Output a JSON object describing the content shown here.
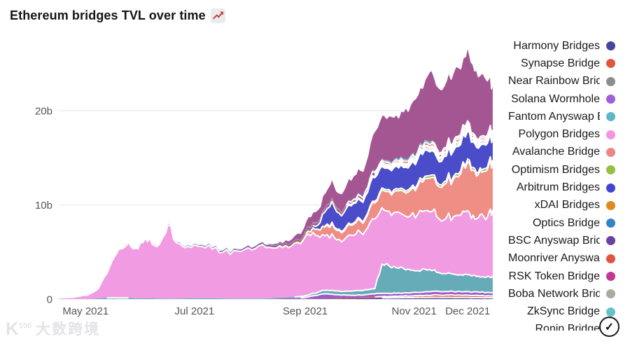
{
  "title": "Ethereum bridges TVL over time",
  "icons": {
    "title_emoji": "chart-increasing",
    "badge": "check-circle",
    "badge_glyph": "✓",
    "emoji_line_color": "#c23a3a"
  },
  "watermark": {
    "logo": "K",
    "logo_sup": "100",
    "text": "大数跨境"
  },
  "legend": {
    "items": [
      {
        "label": "Harmony Bridges",
        "color": "#45479f",
        "fill": "#45479f"
      },
      {
        "label": "Synapse Bridge",
        "color": "#e0563c",
        "fill": "#e0563c"
      },
      {
        "label": "Near Rainbow Bridge",
        "color": "#8d8d8d",
        "fill": "#8d8d8d"
      },
      {
        "label": "Solana Wormhole",
        "color": "#a05fd6",
        "fill": "#9a5ccc"
      },
      {
        "label": "Fantom Anyswap Bridge",
        "color": "#5fb6c4",
        "fill": "#66abb8"
      },
      {
        "label": "Polygon Bridges",
        "color": "#f493e0",
        "fill": "#f19ce2"
      },
      {
        "label": "Avalanche Bridge",
        "color": "#ee8585",
        "fill": "#ef8e85"
      },
      {
        "label": "Optimism Bridges",
        "color": "#94c13f",
        "fill": "#8ec04d"
      },
      {
        "label": "Arbitrum Bridges",
        "color": "#4345d0",
        "fill": "#4a4cc9"
      },
      {
        "label": "xDAI Bridges",
        "color": "#de8a20",
        "fill": "#de8a20"
      },
      {
        "label": "Optics Bridge",
        "color": "#3384c6",
        "fill": "#3384c6"
      },
      {
        "label": "BSC Anyswap Bridge",
        "color": "#6a41a1",
        "fill": "#6a41a1"
      },
      {
        "label": "Moonriver Anyswap Bridge",
        "color": "#e05540",
        "fill": "#e05540"
      },
      {
        "label": "RSK Token Bridge",
        "color": "#c23791",
        "fill": "#c23791"
      },
      {
        "label": "Boba Network Bridge",
        "color": "#abab9b",
        "fill": "#abab9b"
      },
      {
        "label": "ZkSync Bridge",
        "color": "#64c2cd",
        "fill": "#64c2cd"
      },
      {
        "label": "Ronin Bridge",
        "color": "#b05594",
        "fill": "#a45692"
      }
    ]
  },
  "chart_data": {
    "type": "area",
    "stacked": true,
    "title": "Ethereum bridges TVL over time",
    "unit": "billions USD (b)",
    "x_axis": {
      "tick_labels": [
        "May 2021",
        "Jul 2021",
        "Sep 2021",
        "Nov 2021",
        "Dec 2021"
      ],
      "tick_days": [
        15,
        76,
        138,
        199,
        229
      ],
      "day0": "2021-04-16",
      "range_days": [
        0,
        243
      ]
    },
    "y_axis": {
      "tick_labels": [
        "0",
        "10b",
        "20b"
      ],
      "tick_values": [
        0,
        10,
        20
      ],
      "max": 27,
      "grid": true
    },
    "x_days": [
      0,
      8,
      16,
      22,
      27,
      31,
      35,
      39,
      43,
      47,
      51,
      55,
      59,
      62,
      65,
      69,
      74,
      80,
      86,
      92,
      98,
      104,
      110,
      116,
      122,
      127,
      132,
      137,
      141,
      145,
      149,
      153,
      157,
      161,
      165,
      169,
      173,
      177,
      181,
      185,
      189,
      193,
      197,
      201,
      205,
      209,
      213,
      217,
      221,
      225,
      229,
      232,
      235,
      238,
      241,
      243
    ],
    "series": [
      {
        "name": "Harmony Bridges",
        "values": [
          0,
          0,
          0,
          0,
          0,
          0,
          0,
          0,
          0,
          0,
          0,
          0,
          0,
          0,
          0,
          0,
          0,
          0,
          0,
          0,
          0,
          0,
          0,
          0,
          0,
          0,
          0,
          0,
          0.03,
          0.04,
          0.05,
          0.05,
          0.06,
          0.06,
          0.07,
          0.08,
          0.09,
          0.1,
          0.12,
          0.13,
          0.14,
          0.15,
          0.15,
          0.16,
          0.17,
          0.18,
          0.18,
          0.17,
          0.17,
          0.16,
          0.16,
          0.15,
          0.15,
          0.14,
          0.14,
          0.14
        ]
      },
      {
        "name": "Synapse Bridge",
        "values": [
          0,
          0,
          0,
          0,
          0,
          0,
          0,
          0,
          0,
          0,
          0,
          0,
          0,
          0,
          0,
          0,
          0,
          0,
          0,
          0,
          0,
          0,
          0,
          0,
          0,
          0,
          0,
          0,
          0.02,
          0.03,
          0.05,
          0.06,
          0.07,
          0.08,
          0.08,
          0.09,
          0.1,
          0.12,
          0.14,
          0.15,
          0.16,
          0.17,
          0.18,
          0.2,
          0.22,
          0.24,
          0.25,
          0.26,
          0.26,
          0.25,
          0.24,
          0.23,
          0.22,
          0.21,
          0.2,
          0.2
        ]
      },
      {
        "name": "Near Rainbow Bridge",
        "values": [
          0,
          0,
          0,
          0,
          0,
          0,
          0,
          0,
          0,
          0,
          0,
          0,
          0,
          0,
          0,
          0,
          0,
          0,
          0,
          0,
          0,
          0,
          0,
          0,
          0,
          0,
          0,
          0,
          0,
          0,
          0,
          0,
          0,
          0,
          0,
          0,
          0.02,
          0.03,
          0.03,
          0.04,
          0.04,
          0.05,
          0.05,
          0.05,
          0.06,
          0.06,
          0.06,
          0.07,
          0.07,
          0.07,
          0.07,
          0.08,
          0.08,
          0.08,
          0.08,
          0.08
        ]
      },
      {
        "name": "Solana Wormhole",
        "values": [
          0,
          0,
          0,
          0,
          0,
          0,
          0,
          0,
          0,
          0,
          0,
          0,
          0,
          0,
          0,
          0,
          0,
          0,
          0,
          0,
          0,
          0,
          0,
          0,
          0.05,
          0.08,
          0.1,
          0.15,
          0.25,
          0.35,
          0.45,
          0.4,
          0.32,
          0.28,
          0.26,
          0.25,
          0.28,
          0.3,
          0.32,
          0.3,
          0.28,
          0.27,
          0.28,
          0.3,
          0.32,
          0.33,
          0.32,
          0.3,
          0.3,
          0.31,
          0.32,
          0.3,
          0.29,
          0.28,
          0.28,
          0.28
        ]
      },
      {
        "name": "Fantom Anyswap Bridge",
        "values": [
          0,
          0.01,
          0.02,
          0.08,
          0.12,
          0.15,
          0.13,
          0.12,
          0.1,
          0.08,
          0.07,
          0.06,
          0.06,
          0.06,
          0.05,
          0.05,
          0.08,
          0.1,
          0.09,
          0.07,
          0.05,
          0.05,
          0.06,
          0.07,
          0.08,
          0.1,
          0.12,
          0.15,
          0.22,
          0.3,
          0.38,
          0.42,
          0.4,
          0.42,
          0.45,
          0.48,
          0.5,
          0.55,
          3.1,
          2.9,
          2.7,
          2.6,
          2.4,
          2.3,
          2.4,
          2.2,
          2.0,
          1.9,
          1.85,
          1.8,
          1.8,
          1.75,
          1.7,
          1.65,
          1.7,
          1.75
        ]
      },
      {
        "name": "Polygon Bridges",
        "values": [
          0.12,
          0.18,
          0.4,
          1.0,
          2.6,
          4.3,
          5.2,
          5.9,
          5.3,
          5.9,
          6.4,
          5.5,
          6.7,
          7.8,
          6.1,
          5.6,
          5.4,
          5.5,
          5.2,
          4.9,
          5.1,
          5.2,
          5.3,
          5.4,
          5.3,
          5.5,
          5.7,
          6.0,
          6.2,
          6.0,
          5.8,
          6.0,
          5.5,
          5.7,
          5.9,
          6.2,
          6.6,
          7.4,
          6.0,
          5.8,
          5.9,
          5.7,
          5.8,
          6.0,
          6.2,
          6.3,
          5.7,
          5.9,
          6.1,
          6.3,
          6.8,
          6.4,
          6.2,
          6.4,
          6.9,
          7.0
        ]
      },
      {
        "name": "Avalanche Bridge",
        "values": [
          0,
          0,
          0,
          0,
          0,
          0,
          0,
          0,
          0,
          0,
          0,
          0,
          0,
          0,
          0,
          0,
          0,
          0,
          0,
          0,
          0,
          0,
          0,
          0,
          0,
          0,
          0,
          0.1,
          0.4,
          0.7,
          0.9,
          1.1,
          0.95,
          1.05,
          1.15,
          1.2,
          1.4,
          1.7,
          1.9,
          2.1,
          2.3,
          2.5,
          2.7,
          3.0,
          3.4,
          3.6,
          3.4,
          3.7,
          4.0,
          4.4,
          5.2,
          4.8,
          4.6,
          4.8,
          5.1,
          5.0
        ]
      },
      {
        "name": "Optimism Bridges",
        "values": [
          0,
          0,
          0,
          0,
          0,
          0,
          0,
          0,
          0,
          0,
          0,
          0,
          0,
          0,
          0,
          0,
          0,
          0,
          0,
          0,
          0,
          0,
          0.03,
          0.04,
          0.05,
          0.06,
          0.07,
          0.08,
          0.1,
          0.11,
          0.12,
          0.13,
          0.12,
          0.13,
          0.14,
          0.15,
          0.16,
          0.18,
          0.2,
          0.21,
          0.22,
          0.23,
          0.24,
          0.25,
          0.26,
          0.27,
          0.26,
          0.27,
          0.28,
          0.29,
          0.3,
          0.28,
          0.27,
          0.28,
          0.29,
          0.3
        ]
      },
      {
        "name": "Arbitrum Bridges",
        "values": [
          0,
          0,
          0,
          0,
          0,
          0,
          0,
          0,
          0,
          0,
          0,
          0,
          0,
          0,
          0,
          0,
          0,
          0,
          0,
          0,
          0,
          0,
          0,
          0,
          0,
          0,
          0,
          0,
          0.1,
          0.3,
          1.5,
          2.2,
          1.7,
          1.9,
          2.1,
          2.0,
          2.2,
          2.5,
          2.3,
          2.2,
          2.4,
          2.3,
          2.5,
          2.6,
          2.8,
          2.6,
          2.4,
          2.6,
          2.7,
          2.8,
          3.0,
          2.7,
          2.5,
          2.6,
          2.4,
          2.3
        ]
      },
      {
        "name": "xDAI Bridges",
        "values": [
          0,
          0,
          0,
          0,
          0,
          0,
          0,
          0,
          0,
          0,
          0,
          0,
          0,
          0,
          0,
          0,
          0,
          0.05,
          0.05,
          0.06,
          0.06,
          0.07,
          0.07,
          0.08,
          0.08,
          0.09,
          0.09,
          0.1,
          0.1,
          0.11,
          0.11,
          0.12,
          0.11,
          0.12,
          0.12,
          0.13,
          0.13,
          0.14,
          0.14,
          0.15,
          0.15,
          0.15,
          0.16,
          0.16,
          0.17,
          0.17,
          0.16,
          0.16,
          0.17,
          0.17,
          0.18,
          0.17,
          0.16,
          0.16,
          0.17,
          0.17
        ]
      },
      {
        "name": "Optics Bridge",
        "values": [
          0,
          0,
          0,
          0,
          0,
          0,
          0,
          0,
          0,
          0,
          0,
          0,
          0,
          0,
          0,
          0,
          0,
          0,
          0,
          0,
          0,
          0,
          0,
          0,
          0,
          0,
          0,
          0,
          0,
          0,
          0,
          0,
          0,
          0,
          0.05,
          0.08,
          0.1,
          0.12,
          0.13,
          0.14,
          0.15,
          0.16,
          0.17,
          0.18,
          0.19,
          0.2,
          0.19,
          0.19,
          0.2,
          0.2,
          0.21,
          0.2,
          0.19,
          0.19,
          0.2,
          0.2
        ]
      },
      {
        "name": "BSC Anyswap Bridge",
        "values": [
          0,
          0,
          0,
          0,
          0,
          0,
          0,
          0,
          0,
          0,
          0.03,
          0.03,
          0.04,
          0.04,
          0.04,
          0.05,
          0.05,
          0.05,
          0.06,
          0.06,
          0.06,
          0.07,
          0.07,
          0.07,
          0.08,
          0.08,
          0.08,
          0.09,
          0.09,
          0.09,
          0.1,
          0.1,
          0.1,
          0.1,
          0.11,
          0.11,
          0.11,
          0.12,
          0.12,
          0.12,
          0.12,
          0.13,
          0.13,
          0.13,
          0.14,
          0.14,
          0.13,
          0.13,
          0.14,
          0.14,
          0.14,
          0.13,
          0.13,
          0.13,
          0.13,
          0.13
        ]
      },
      {
        "name": "Moonriver Anyswap Bridge",
        "values": [
          0,
          0,
          0,
          0,
          0,
          0,
          0,
          0,
          0,
          0,
          0,
          0,
          0,
          0,
          0,
          0,
          0,
          0,
          0,
          0,
          0,
          0,
          0,
          0,
          0,
          0,
          0,
          0,
          0.03,
          0.05,
          0.07,
          0.09,
          0.1,
          0.12,
          0.13,
          0.15,
          0.17,
          0.19,
          0.21,
          0.22,
          0.23,
          0.24,
          0.25,
          0.26,
          0.27,
          0.26,
          0.25,
          0.24,
          0.24,
          0.23,
          0.23,
          0.22,
          0.21,
          0.21,
          0.2,
          0.2
        ]
      },
      {
        "name": "RSK Token Bridge",
        "values": [
          0,
          0.01,
          0.02,
          0.03,
          0.04,
          0.05,
          0.05,
          0.05,
          0.05,
          0.05,
          0.05,
          0.05,
          0.05,
          0.05,
          0.05,
          0.05,
          0.05,
          0.05,
          0.05,
          0.05,
          0.05,
          0.05,
          0.05,
          0.05,
          0.05,
          0.05,
          0.05,
          0.05,
          0.06,
          0.06,
          0.06,
          0.06,
          0.06,
          0.06,
          0.06,
          0.06,
          0.07,
          0.07,
          0.07,
          0.07,
          0.07,
          0.07,
          0.07,
          0.07,
          0.07,
          0.07,
          0.07,
          0.07,
          0.07,
          0.07,
          0.07,
          0.07,
          0.07,
          0.07,
          0.07,
          0.07
        ]
      },
      {
        "name": "Boba Network Bridge",
        "values": [
          0,
          0,
          0,
          0,
          0,
          0,
          0,
          0,
          0,
          0,
          0,
          0,
          0,
          0,
          0,
          0,
          0,
          0,
          0,
          0,
          0,
          0,
          0,
          0,
          0,
          0,
          0,
          0,
          0,
          0,
          0,
          0,
          0,
          0,
          0,
          0.02,
          0.03,
          0.04,
          0.05,
          0.06,
          0.07,
          0.08,
          0.09,
          0.1,
          0.11,
          0.12,
          0.12,
          0.13,
          0.13,
          0.14,
          0.14,
          0.14,
          0.13,
          0.13,
          0.13,
          0.13
        ]
      },
      {
        "name": "ZkSync Bridge",
        "values": [
          0,
          0,
          0,
          0,
          0,
          0,
          0,
          0,
          0,
          0,
          0.02,
          0.02,
          0.03,
          0.03,
          0.03,
          0.03,
          0.04,
          0.04,
          0.04,
          0.04,
          0.05,
          0.05,
          0.05,
          0.05,
          0.06,
          0.06,
          0.06,
          0.06,
          0.07,
          0.07,
          0.07,
          0.08,
          0.08,
          0.08,
          0.08,
          0.09,
          0.09,
          0.09,
          0.1,
          0.1,
          0.1,
          0.1,
          0.11,
          0.11,
          0.11,
          0.11,
          0.11,
          0.11,
          0.12,
          0.12,
          0.12,
          0.11,
          0.11,
          0.11,
          0.11,
          0.11
        ]
      },
      {
        "name": "Ronin Bridge",
        "values": [
          0,
          0,
          0,
          0,
          0,
          0,
          0,
          0,
          0,
          0,
          0,
          0,
          0,
          0,
          0,
          0,
          0,
          0,
          0,
          0,
          0,
          0,
          0,
          0,
          0.15,
          0.3,
          0.5,
          0.8,
          1.1,
          1.3,
          1.6,
          2.0,
          1.7,
          2.1,
          2.4,
          2.6,
          3.2,
          4.2,
          4.6,
          4.8,
          4.6,
          5.0,
          5.4,
          5.8,
          6.4,
          7.4,
          6.8,
          7.0,
          7.3,
          7.0,
          7.9,
          7.2,
          6.6,
          6.4,
          5.4,
          4.9
        ]
      }
    ],
    "legend_position": "right"
  }
}
